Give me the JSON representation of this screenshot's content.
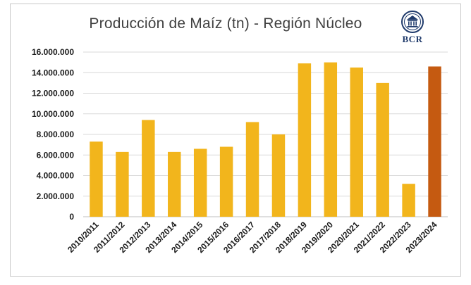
{
  "chart_data": {
    "type": "bar",
    "title": "Producción de Maíz (tn) - Región Núcleo",
    "xlabel": "",
    "ylabel": "",
    "ylim": [
      0,
      16000000
    ],
    "yticks": [
      0,
      2000000,
      4000000,
      6000000,
      8000000,
      10000000,
      12000000,
      14000000,
      16000000
    ],
    "ytick_labels": [
      "0",
      "2.000.000",
      "4.000.000",
      "6.000.000",
      "8.000.000",
      "10.000.000",
      "12.000.000",
      "14.000.000",
      "16.000.000"
    ],
    "categories": [
      "2010/2011",
      "2011/2012",
      "2012/2013",
      "2013/2014",
      "2014/2015",
      "2015/2016",
      "2016/2017",
      "2017/2018",
      "2018/2019",
      "2019/2020",
      "2020/2021",
      "2021/2022",
      "2022/2023",
      "2023/2024"
    ],
    "values": [
      7300000,
      6300000,
      9400000,
      6300000,
      6600000,
      6800000,
      9200000,
      8000000,
      14900000,
      15000000,
      14500000,
      13000000,
      3200000,
      14600000
    ],
    "grid": true,
    "colors": {
      "default_bar": "#f2b51c",
      "highlight_bar": "#c55a11",
      "highlight_index": 13
    }
  },
  "logo": {
    "text": "BCR",
    "icon": "bcr-building-seal-icon",
    "color": "#1f3a6b"
  }
}
